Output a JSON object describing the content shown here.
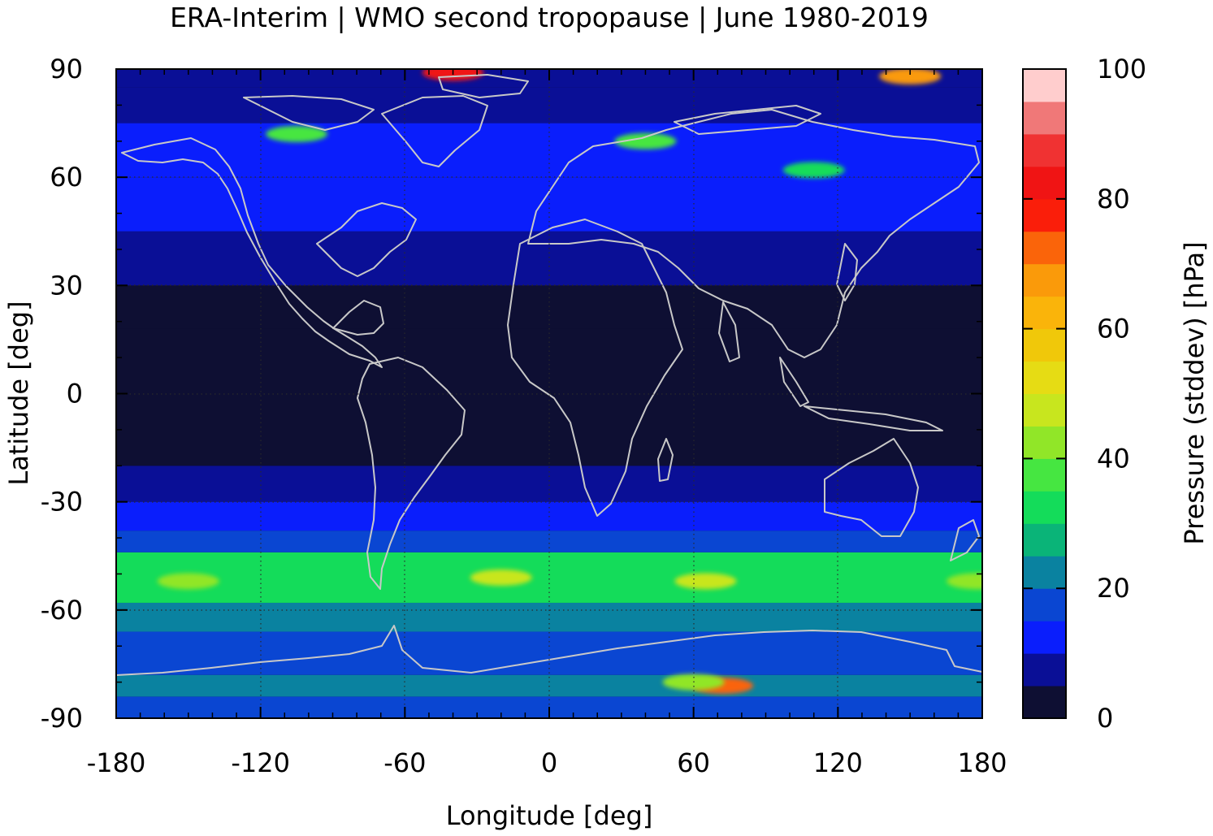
{
  "chart_data": {
    "type": "heatmap",
    "title": "ERA-Interim | WMO second tropopause | June 1980-2019",
    "xlabel": "Longitude [deg]",
    "ylabel": "Latitude [deg]",
    "xlim": [
      -180,
      180
    ],
    "ylim": [
      -90,
      90
    ],
    "x_ticks": [
      -180,
      -120,
      -60,
      0,
      60,
      120,
      180
    ],
    "y_ticks": [
      90,
      60,
      30,
      0,
      -30,
      -60,
      -90
    ],
    "x_tick_labels": [
      "-180",
      "-120",
      "-60",
      "0",
      "60",
      "120",
      "180"
    ],
    "y_tick_labels": [
      "90",
      "60",
      "30",
      "0",
      "-30",
      "-60",
      "-90"
    ],
    "grid": true,
    "colorbar": {
      "label": "Pressure (stddev) [hPa]",
      "range": [
        0,
        100
      ],
      "ticks": [
        0,
        20,
        40,
        60,
        80,
        100
      ],
      "tick_labels": [
        "0",
        "20",
        "40",
        "60",
        "80",
        "100"
      ],
      "levels": [
        {
          "from": 0,
          "to": 5,
          "color": "#0e0f33"
        },
        {
          "from": 5,
          "to": 10,
          "color": "#0a0f96"
        },
        {
          "from": 10,
          "to": 15,
          "color": "#0a1efc"
        },
        {
          "from": 15,
          "to": 20,
          "color": "#0a46d2"
        },
        {
          "from": 20,
          "to": 25,
          "color": "#0a82a0"
        },
        {
          "from": 25,
          "to": 30,
          "color": "#0ab478"
        },
        {
          "from": 30,
          "to": 35,
          "color": "#14dc5a"
        },
        {
          "from": 35,
          "to": 40,
          "color": "#46e641"
        },
        {
          "from": 40,
          "to": 45,
          "color": "#91e628"
        },
        {
          "from": 45,
          "to": 50,
          "color": "#c8e61e"
        },
        {
          "from": 50,
          "to": 55,
          "color": "#e6dc14"
        },
        {
          "from": 55,
          "to": 60,
          "color": "#f0c80a"
        },
        {
          "from": 60,
          "to": 65,
          "color": "#fab40a"
        },
        {
          "from": 65,
          "to": 70,
          "color": "#fa9a0a"
        },
        {
          "from": 70,
          "to": 75,
          "color": "#fa640a"
        },
        {
          "from": 75,
          "to": 80,
          "color": "#fa1e0a"
        },
        {
          "from": 80,
          "to": 85,
          "color": "#f01414"
        },
        {
          "from": 85,
          "to": 90,
          "color": "#f03232"
        },
        {
          "from": 90,
          "to": 95,
          "color": "#f07878"
        },
        {
          "from": 95,
          "to": 100,
          "color": "#ffcdcd"
        }
      ]
    },
    "latitude_bands": [
      {
        "lat_from": -90,
        "lat_to": -84,
        "value": 15
      },
      {
        "lat_from": -84,
        "lat_to": -78,
        "value": 20
      },
      {
        "lat_from": -78,
        "lat_to": -66,
        "value": 18
      },
      {
        "lat_from": -66,
        "lat_to": -58,
        "value": 20
      },
      {
        "lat_from": -58,
        "lat_to": -44,
        "value": 32
      },
      {
        "lat_from": -44,
        "lat_to": -38,
        "value": 15
      },
      {
        "lat_from": -38,
        "lat_to": -30,
        "value": 12
      },
      {
        "lat_from": -30,
        "lat_to": -20,
        "value": 8
      },
      {
        "lat_from": -20,
        "lat_to": 18,
        "value": 3
      },
      {
        "lat_from": 18,
        "lat_to": 30,
        "value": 4
      },
      {
        "lat_from": 30,
        "lat_to": 45,
        "value": 8
      },
      {
        "lat_from": 45,
        "lat_to": 60,
        "value": 12
      },
      {
        "lat_from": 60,
        "lat_to": 75,
        "value": 14
      },
      {
        "lat_from": 75,
        "lat_to": 85,
        "value": 8
      },
      {
        "lat_from": 85,
        "lat_to": 90,
        "value": 5
      }
    ],
    "features": [
      {
        "lon": 72,
        "lat": -81,
        "value": 70
      },
      {
        "lon": 60,
        "lat": -80,
        "value": 40
      },
      {
        "lon": -150,
        "lat": -52,
        "value": 42
      },
      {
        "lon": -20,
        "lat": -51,
        "value": 48
      },
      {
        "lon": 65,
        "lat": -52,
        "value": 48
      },
      {
        "lon": 178,
        "lat": -52,
        "value": 42
      },
      {
        "lon": -105,
        "lat": 72,
        "value": 35
      },
      {
        "lon": 40,
        "lat": 70,
        "value": 35
      },
      {
        "lon": 110,
        "lat": 62,
        "value": 30
      },
      {
        "lon": -40,
        "lat": 89,
        "value": 80
      },
      {
        "lon": 150,
        "lat": 88,
        "value": 65
      }
    ]
  }
}
